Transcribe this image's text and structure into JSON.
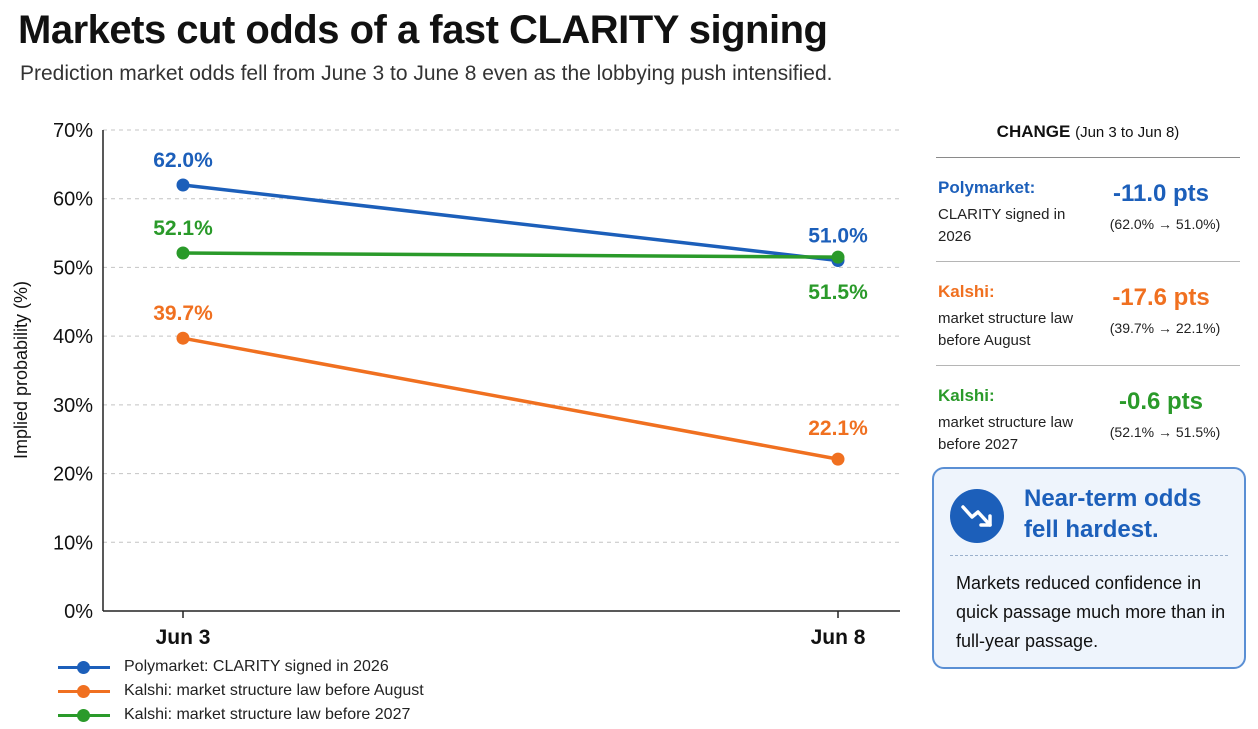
{
  "title": "Markets cut odds of a fast CLARITY signing",
  "subtitle": "Prediction market odds fell from June 3 to June 8 even as the lobbying push intensified.",
  "colors": {
    "blue": "#1c5fba",
    "orange": "#f07020",
    "green": "#2a9a2a",
    "grid": "#c4c4c4",
    "axis": "#222222"
  },
  "chart_data": {
    "type": "line",
    "categories": [
      "Jun 3",
      "Jun 8"
    ],
    "ylabel": "Implied probability (%)",
    "ylim": [
      0,
      70
    ],
    "yticks": [
      "0%",
      "10%",
      "20%",
      "30%",
      "40%",
      "50%",
      "60%",
      "70%"
    ],
    "grid": true,
    "legend_position": "bottom-left",
    "series": [
      {
        "name": "Polymarket: CLARITY signed in 2026",
        "color": "#1c5fba",
        "values": [
          62.0,
          51.0
        ],
        "labels": [
          "62.0%",
          "51.0%"
        ]
      },
      {
        "name": "Kalshi: market structure law before August",
        "color": "#f07020",
        "values": [
          39.7,
          22.1
        ],
        "labels": [
          "39.7%",
          "22.1%"
        ]
      },
      {
        "name": "Kalshi: market structure law before 2027",
        "color": "#2a9a2a",
        "values": [
          52.1,
          51.5
        ],
        "labels": [
          "52.1%",
          "51.5%"
        ]
      }
    ]
  },
  "panel": {
    "header_main": "CHANGE",
    "header_sub": "(Jun 3 to Jun 8)",
    "rows": [
      {
        "source": "Polymarket:",
        "desc": "CLARITY signed in 2026",
        "value": "-11.0 pts",
        "detail": "(62.0% → 51.0%)",
        "color": "#1c5fba"
      },
      {
        "source": "Kalshi:",
        "desc": "market structure law before August",
        "value": "-17.6 pts",
        "detail": "(39.7% → 22.1%)",
        "color": "#f07020"
      },
      {
        "source": "Kalshi:",
        "desc": "market structure law before 2027",
        "value": "-0.6 pts",
        "detail": "(52.1% → 51.5%)",
        "color": "#2a9a2a"
      }
    ]
  },
  "callout": {
    "icon": "trending-down-icon",
    "title": "Near-term odds fell hardest.",
    "body": "Markets reduced confidence in quick passage much more than in full-year passage."
  }
}
